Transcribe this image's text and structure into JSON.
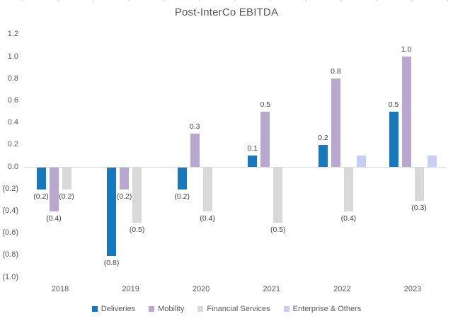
{
  "chart_data": {
    "type": "bar",
    "title": "Post-InterCo EBITDA",
    "categories": [
      "2018",
      "2019",
      "2020",
      "2021",
      "2022",
      "2023"
    ],
    "series": [
      {
        "name": "Deliveries",
        "color": "#1878BE",
        "values": [
          -0.2,
          -0.8,
          -0.2,
          0.1,
          0.2,
          0.5
        ],
        "labels": [
          "(0.2)",
          "(0.8)",
          "(0.2)",
          "0.1",
          "0.2",
          "0.5"
        ]
      },
      {
        "name": "Mobility",
        "color": "#B8A8CF",
        "values": [
          -0.4,
          -0.2,
          0.3,
          0.5,
          0.8,
          1.0
        ],
        "labels": [
          "(0.4)",
          "(0.2)",
          "0.3",
          "0.5",
          "0.8",
          "1.0"
        ]
      },
      {
        "name": "Financial Services",
        "color": "#D9D9D9",
        "values": [
          -0.2,
          -0.5,
          -0.4,
          -0.5,
          -0.4,
          -0.3
        ],
        "labels": [
          "(0.2)",
          "(0.5)",
          "(0.4)",
          "(0.5)",
          "(0.4)",
          "(0.3)"
        ]
      },
      {
        "name": "Enterprise & Others",
        "color": "#C7CDF5",
        "values": [
          null,
          null,
          null,
          null,
          0.1,
          0.1
        ],
        "labels": [
          "",
          "",
          "",
          "",
          "",
          ""
        ]
      }
    ],
    "ylim": [
      -1.0,
      1.2
    ],
    "ytick_interval": 0.2,
    "ytick_labels": [
      "1.2",
      "1.0",
      "0.8",
      "0.6",
      "0.4",
      "0.2",
      "0.0",
      "(0.2)",
      "(0.4)",
      "(0.6)",
      "(0.8)",
      "(1.0)"
    ],
    "grid": "zero-axis-line-only",
    "legend_position": "bottom",
    "text_colors": {
      "title": "#53545C",
      "axis_labels": "#595959",
      "data_labels": "#3F3F3F",
      "zero_line": "#D9D9D9"
    }
  }
}
